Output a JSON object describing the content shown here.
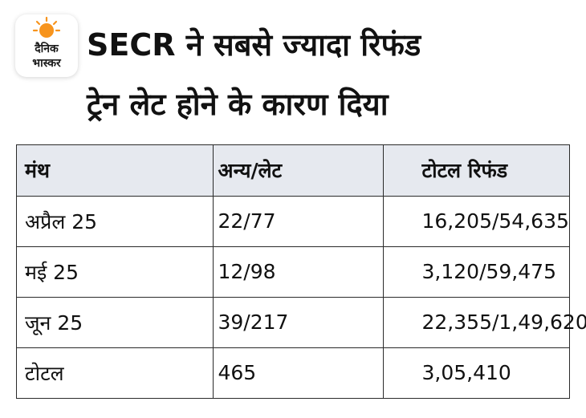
{
  "logo": {
    "line1": "दैनिक",
    "line2": "भास्कर",
    "sun_color": "#f7941d"
  },
  "headline": {
    "line1": "SECR ने सबसे ज्यादा रिफंड",
    "line2": "ट्रेन लेट होने के कारण दिया"
  },
  "table": {
    "headers": [
      "मंथ",
      "अन्य/लेट",
      "टोटल रिफंड"
    ],
    "header_bg": "#e6e9ef",
    "rows": [
      [
        "अप्रैल 25",
        "22/77",
        "16,205/54,635"
      ],
      [
        "मई 25",
        "12/98",
        "3,120/59,475"
      ],
      [
        "जून 25",
        "39/217",
        "22,355/1,49,620"
      ],
      [
        "टोटल",
        "465",
        "3,05,410"
      ]
    ]
  }
}
